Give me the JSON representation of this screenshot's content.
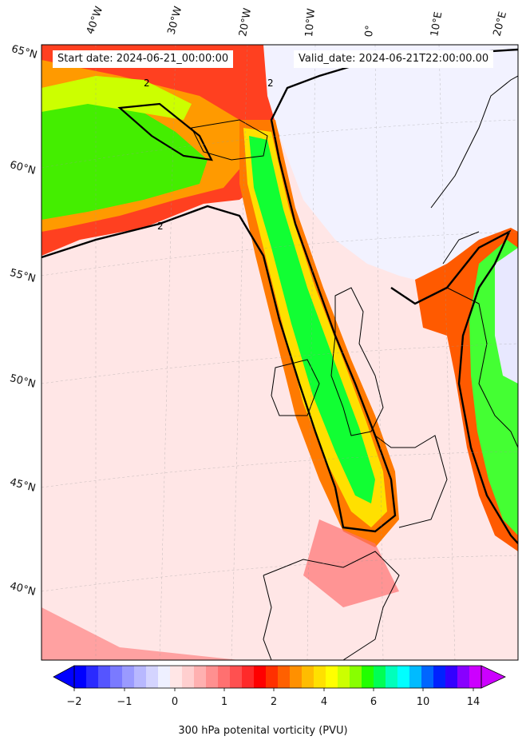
{
  "header": {
    "start_date": "Start date: 2024-06-21_00:00:00",
    "valid_date": "Valid_date: 2024-06-21T22:00:00.00"
  },
  "lon_labels": [
    "40°W",
    "30°W",
    "20°W",
    "10°W",
    "0°",
    "10°E",
    "20°E"
  ],
  "lat_labels": [
    "65°N",
    "60°N",
    "55°N",
    "50°N",
    "45°N",
    "40°N"
  ],
  "contour_label": "2",
  "colorbar": {
    "title": "300 hPa potenital vorticity (PVU)",
    "ticks": [
      "−2",
      "−1",
      "0",
      "1",
      "2",
      "4",
      "6",
      "10",
      "14"
    ],
    "colors": [
      "#0000ff",
      "#2a2aff",
      "#5555ff",
      "#7a7aff",
      "#9a9aff",
      "#b8b8ff",
      "#d4d4ff",
      "#eef0ff",
      "#ffe6e6",
      "#ffcfcf",
      "#ffb0b0",
      "#ff9090",
      "#ff7070",
      "#ff5050",
      "#ff2a2a",
      "#ff0000",
      "#ff3000",
      "#ff6000",
      "#ff9000",
      "#ffbc00",
      "#ffe000",
      "#ffff00",
      "#ccff00",
      "#88ff00",
      "#22ff00",
      "#00ff55",
      "#00ffbb",
      "#00ffff",
      "#00bbff",
      "#0066ff",
      "#0022ff",
      "#3300ff",
      "#8800ff",
      "#cc00ff"
    ]
  },
  "colors": {
    "background_pv": "#ffe4e4",
    "jet_core": "#00ff33",
    "contour": "#000000",
    "coast": "#000000"
  }
}
